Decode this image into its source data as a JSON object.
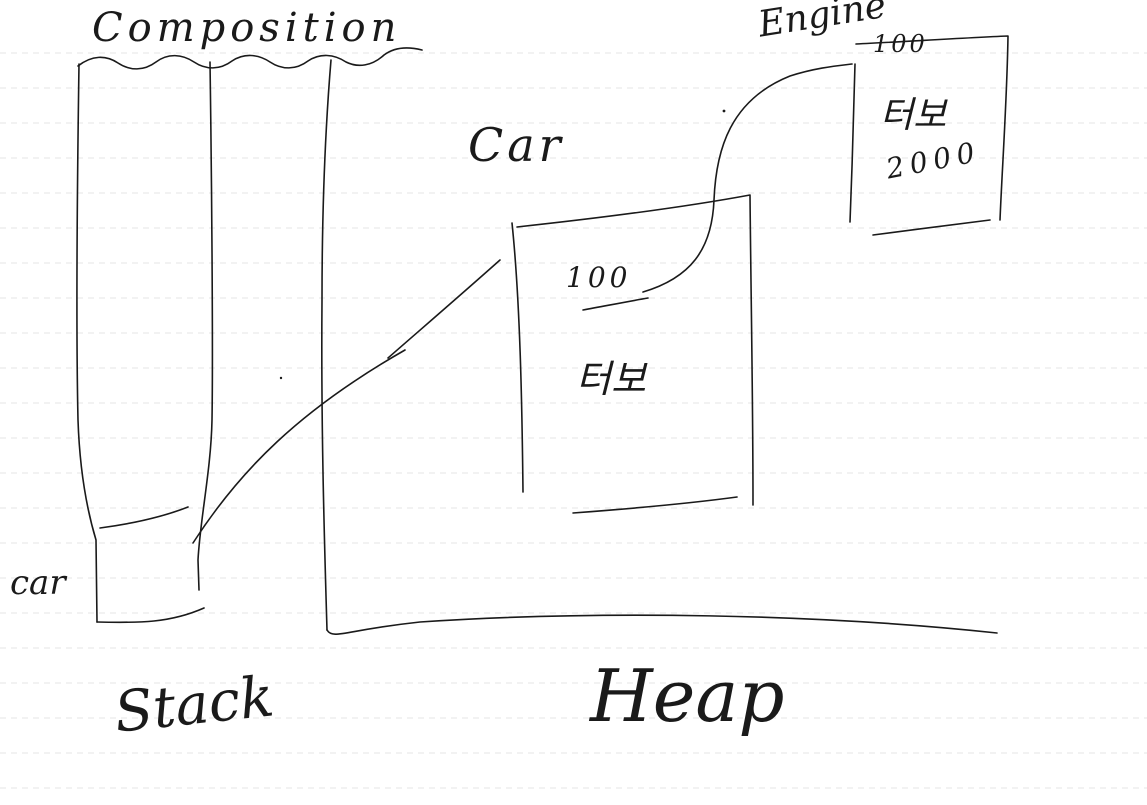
{
  "labels": {
    "title": "Composition",
    "stack_var": "car",
    "car_class": "Car",
    "car_field_number": "100",
    "car_field_name": "터보",
    "engine_class": "Engine",
    "engine_field_number": "100",
    "engine_field_name": "터보",
    "engine_field_value": "2000",
    "stack": "Stack",
    "heap": "Heap"
  },
  "colors": {
    "ink": "#1a1a1a",
    "paper": "#ffffff",
    "ruled_line": "#e4e4e4"
  }
}
